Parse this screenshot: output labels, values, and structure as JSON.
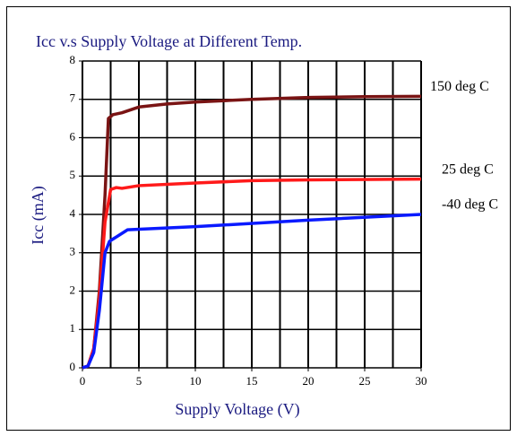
{
  "chart_data": {
    "type": "line",
    "title": "Icc v.s Supply Voltage at Different Temp.",
    "x_label": "Supply Voltage (V)",
    "y_label": "Icc (mA)",
    "xlim": [
      0,
      30
    ],
    "ylim": [
      0,
      8
    ],
    "xticks": [
      0,
      5,
      10,
      15,
      20,
      25,
      30
    ],
    "xgrid": [
      0,
      2.5,
      5,
      7.5,
      10,
      12.5,
      15,
      17.5,
      20,
      22.5,
      25,
      27.5,
      30
    ],
    "yticks": [
      0,
      1,
      2,
      3,
      4,
      5,
      6,
      7,
      8
    ],
    "grid": true,
    "series": [
      {
        "name": "150 deg C",
        "color": "#7a1414",
        "x": [
          0,
          0.5,
          1,
          1.5,
          2,
          2.3,
          2.7,
          3.5,
          5,
          7.5,
          10,
          15,
          20,
          25,
          30
        ],
        "values": [
          0,
          0.05,
          0.5,
          2,
          4.5,
          6.5,
          6.6,
          6.65,
          6.8,
          6.88,
          6.93,
          7.0,
          7.05,
          7.07,
          7.08
        ]
      },
      {
        "name": "25 deg C",
        "color": "#ff1a1a",
        "x": [
          0,
          0.5,
          1,
          1.5,
          2,
          2.5,
          3,
          3.5,
          5,
          10,
          15,
          20,
          30
        ],
        "values": [
          0,
          0.05,
          0.5,
          1.8,
          3.8,
          4.65,
          4.7,
          4.68,
          4.75,
          4.82,
          4.88,
          4.9,
          4.92
        ]
      },
      {
        "name": "-40 deg C",
        "color": "#0a1aff",
        "x": [
          0,
          0.5,
          1,
          1.5,
          2,
          2.4,
          4,
          10,
          20,
          30
        ],
        "values": [
          0,
          0.05,
          0.4,
          1.5,
          3.0,
          3.3,
          3.6,
          3.68,
          3.85,
          4.0
        ]
      }
    ]
  }
}
